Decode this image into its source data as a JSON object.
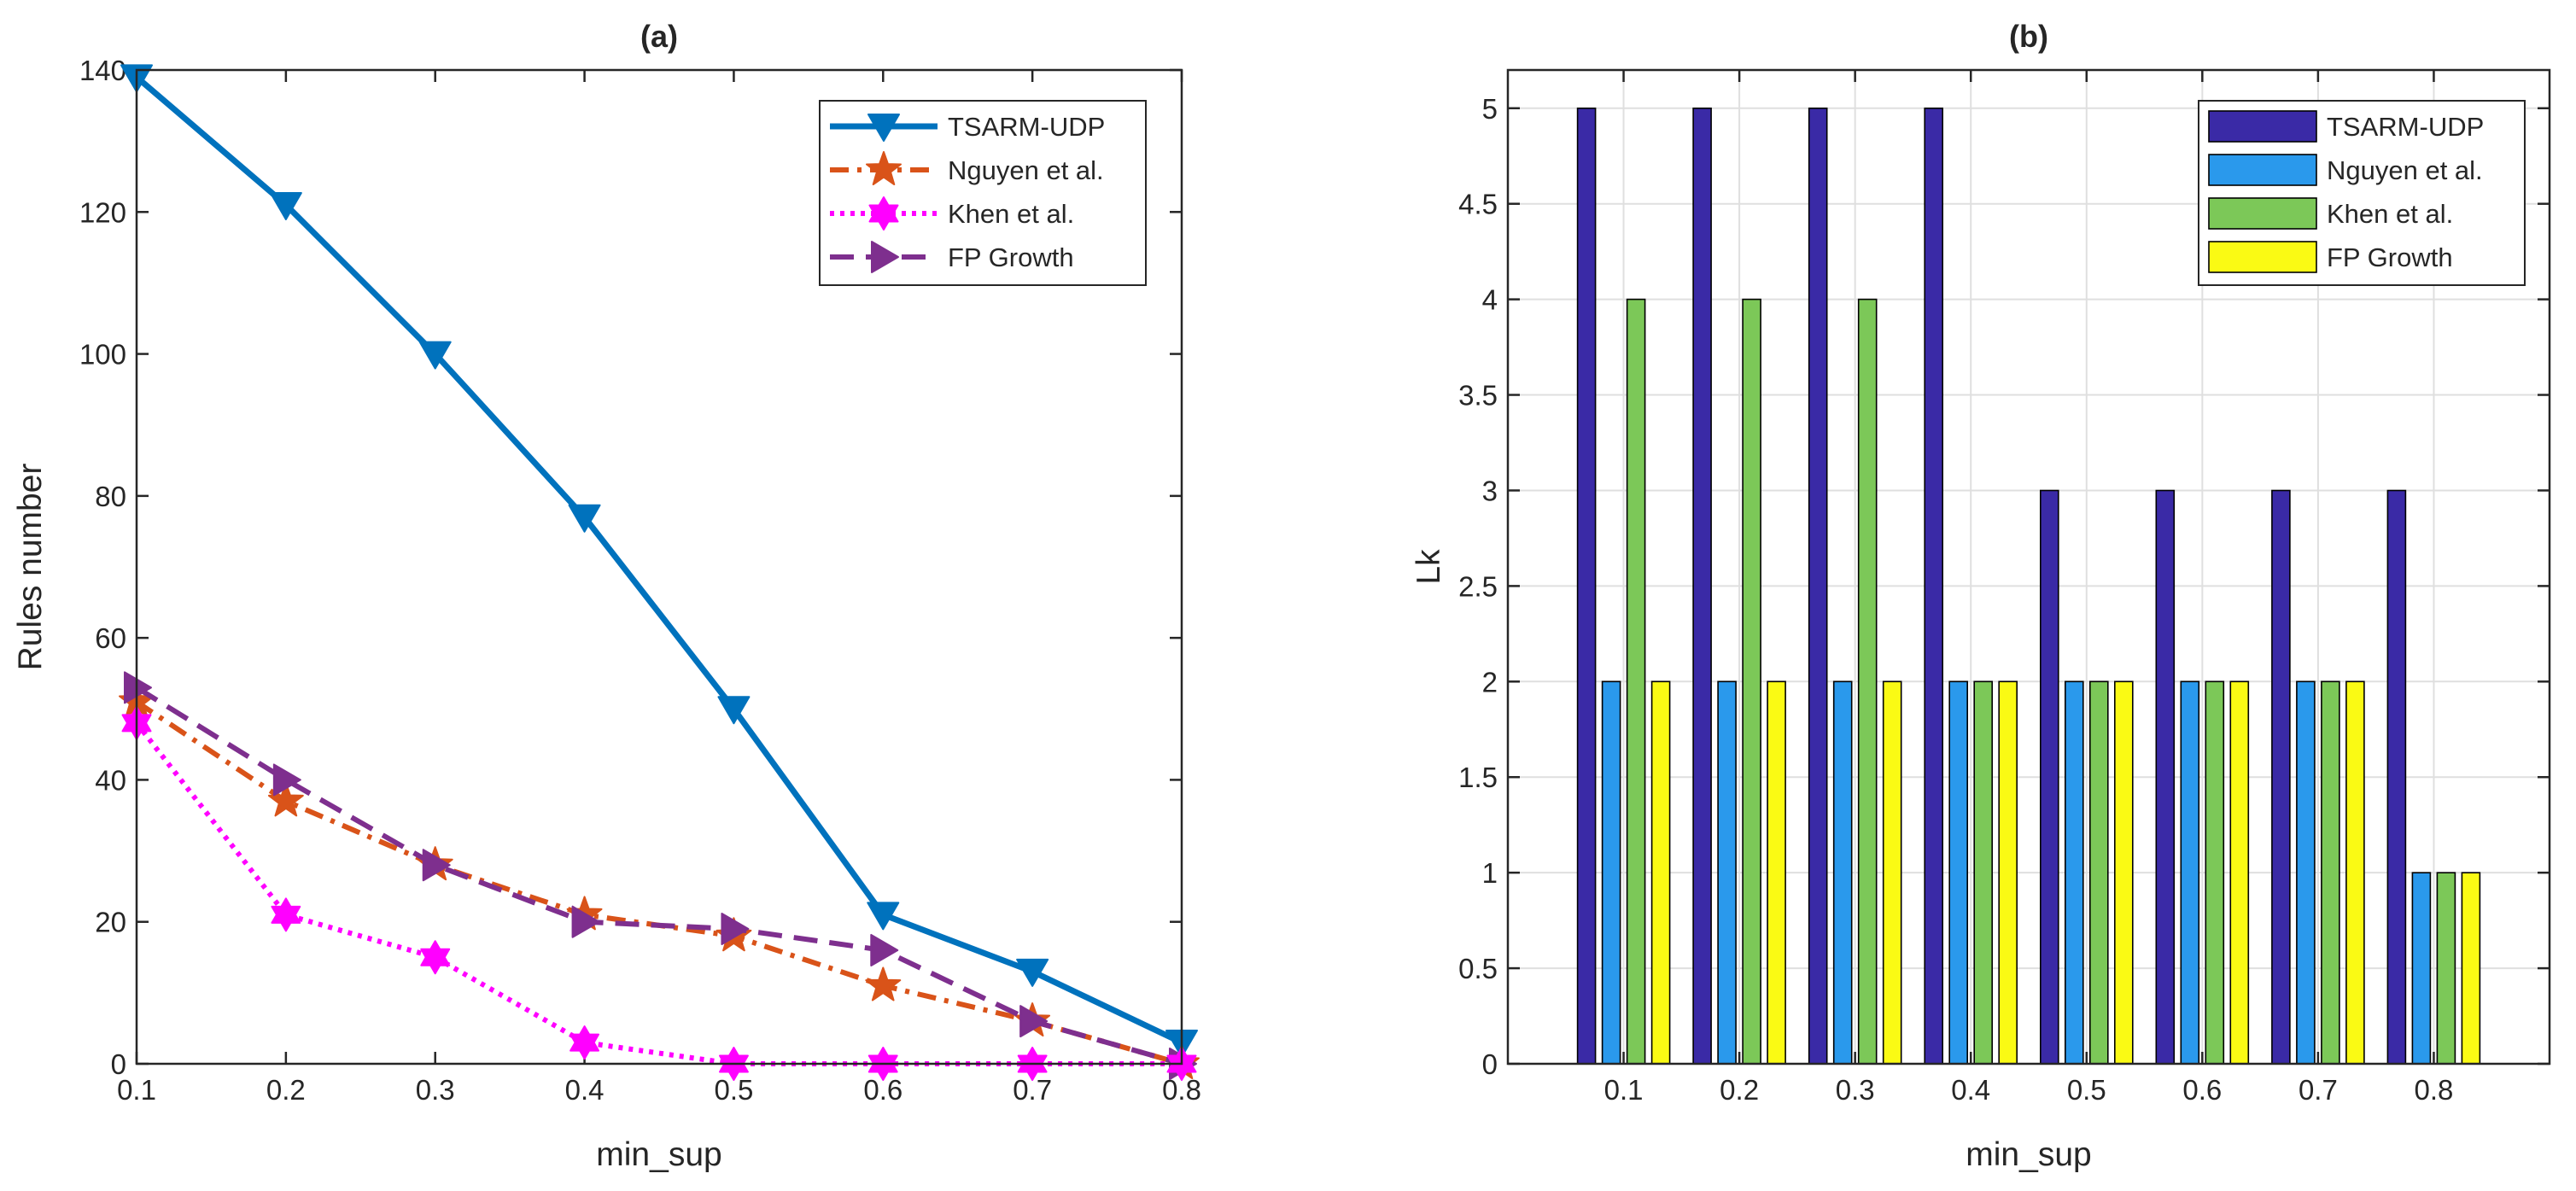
{
  "chart_data": [
    {
      "id": "a",
      "type": "line",
      "title": "(a)",
      "xlabel": "min_sup",
      "ylabel": "Rules number",
      "x": [
        0.1,
        0.2,
        0.3,
        0.4,
        0.5,
        0.6,
        0.7,
        0.8
      ],
      "xlim": [
        0.1,
        0.8
      ],
      "ylim": [
        0,
        140
      ],
      "xticks": [
        "0.1",
        "0.2",
        "0.3",
        "0.4",
        "0.5",
        "0.6",
        "0.7",
        "0.8"
      ],
      "yticks": [
        "0",
        "20",
        "40",
        "60",
        "80",
        "100",
        "120",
        "140"
      ],
      "grid": false,
      "legend_position": "top-right",
      "series": [
        {
          "name": "TSARM-UDP",
          "values": [
            139,
            121,
            100,
            77,
            50,
            21,
            13,
            3
          ],
          "color": "#0072BD",
          "style": "solid",
          "marker": "triangle-down"
        },
        {
          "name": "Nguyen et al.",
          "values": [
            51,
            37,
            28,
            21,
            18,
            11,
            6,
            0
          ],
          "color": "#D95319",
          "style": "dashdot",
          "marker": "star"
        },
        {
          "name": "Khen et al.",
          "values": [
            48,
            21,
            15,
            3,
            0,
            0,
            0,
            0
          ],
          "color": "#FF00FF",
          "style": "dotted",
          "marker": "hexagram"
        },
        {
          "name": "FP Growth",
          "values": [
            53,
            40,
            28,
            20,
            19,
            16,
            6,
            0
          ],
          "color": "#7E2F8E",
          "style": "dashed",
          "marker": "triangle-right"
        }
      ]
    },
    {
      "id": "b",
      "type": "bar",
      "title": "(b)",
      "xlabel": "min_sup",
      "ylabel": "Lk",
      "categories": [
        "0.1",
        "0.2",
        "0.3",
        "0.4",
        "0.5",
        "0.6",
        "0.7",
        "0.8"
      ],
      "ylim": [
        0,
        5.2
      ],
      "yticks": [
        "0",
        "0.5",
        "1",
        "1.5",
        "2",
        "2.5",
        "3",
        "3.5",
        "4",
        "4.5",
        "5"
      ],
      "grid": true,
      "legend_position": "top-right",
      "series": [
        {
          "name": "TSARM-UDP",
          "values": [
            5,
            5,
            5,
            5,
            3,
            3,
            3,
            3
          ],
          "color": "#3A2AA6"
        },
        {
          "name": "Nguyen et al.",
          "values": [
            2,
            2,
            2,
            2,
            2,
            2,
            2,
            1
          ],
          "color": "#2A99EC"
        },
        {
          "name": "Khen et al.",
          "values": [
            4,
            4,
            4,
            2,
            2,
            2,
            2,
            1
          ],
          "color": "#7CC858"
        },
        {
          "name": "FP Growth",
          "values": [
            2,
            2,
            2,
            2,
            2,
            2,
            2,
            1
          ],
          "color": "#FAFA14"
        }
      ]
    }
  ]
}
